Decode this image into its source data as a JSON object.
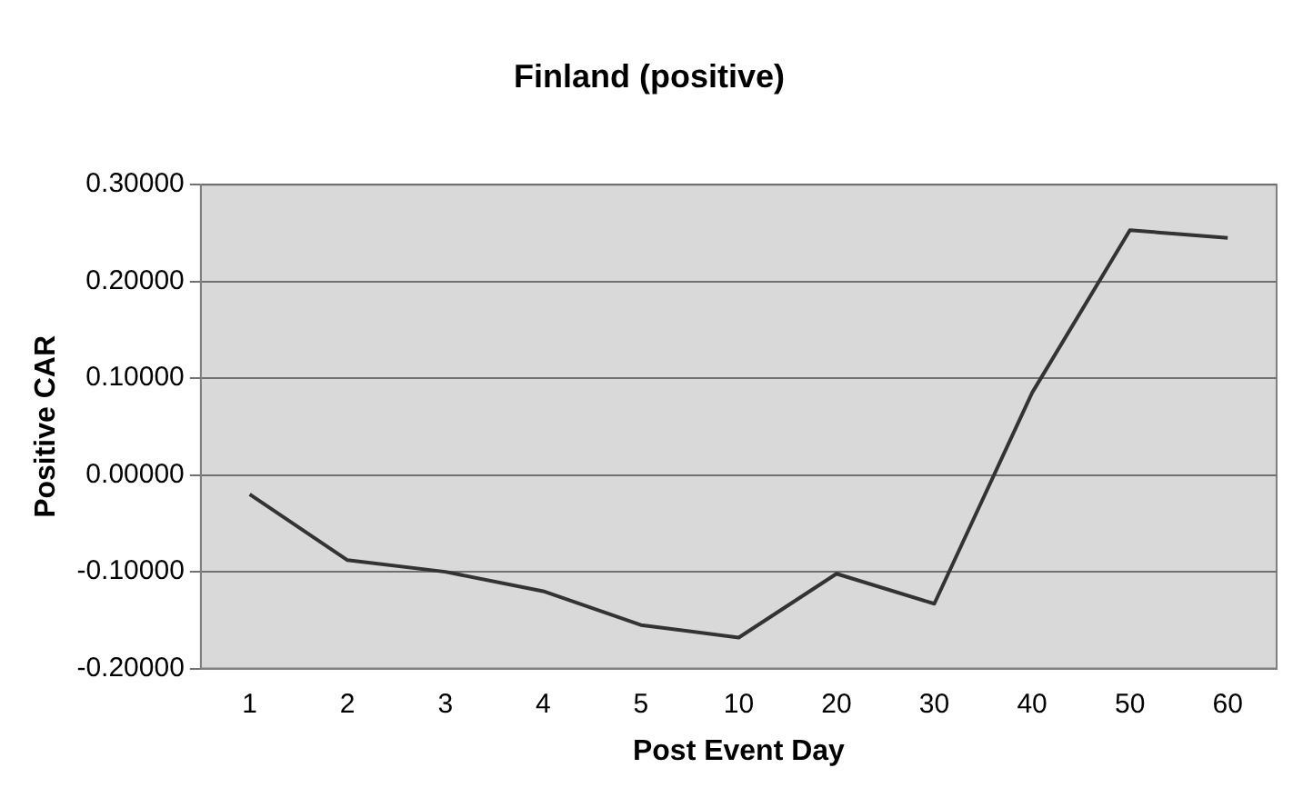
{
  "chart_data": {
    "type": "line",
    "title": "Finland (positive)",
    "xlabel": "Post Event Day",
    "ylabel": "Positive CAR",
    "categories": [
      "1",
      "2",
      "3",
      "4",
      "5",
      "10",
      "20",
      "30",
      "40",
      "50",
      "60"
    ],
    "series": [
      {
        "color": "#333333",
        "values": [
          -0.02,
          -0.088,
          -0.1,
          -0.12,
          -0.155,
          -0.168,
          -0.102,
          -0.133,
          0.085,
          0.253,
          0.245
        ]
      }
    ],
    "ylim": [
      -0.2,
      0.3
    ],
    "yticks": [
      {
        "value": -0.2,
        "label": "-0.20000"
      },
      {
        "value": -0.1,
        "label": "-0.10000"
      },
      {
        "value": 0,
        "label": "0.00000"
      },
      {
        "value": 0.1,
        "label": "0.10000"
      },
      {
        "value": 0.2,
        "label": "0.20000"
      },
      {
        "value": 0.3,
        "label": "0.30000"
      }
    ],
    "grid": "y",
    "legend": false,
    "marker": "none",
    "line_style": "solid"
  }
}
